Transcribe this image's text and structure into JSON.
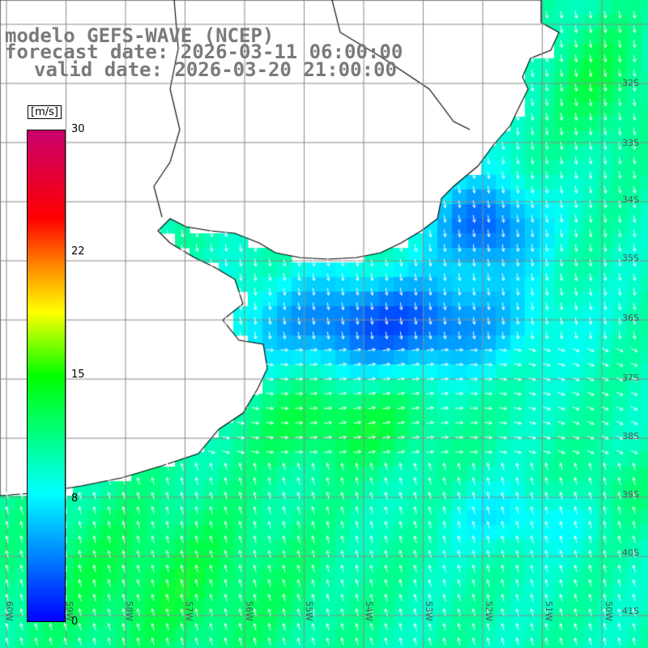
{
  "title": {
    "model": "modelo GEFS-WAVE (NCEP)",
    "forecast": "forecast date: 2026-03-11 06:00:00",
    "valid": "valid date: 2026-03-20 21:00:00"
  },
  "colorbar": {
    "unit": "[m/s]",
    "ticks": [
      "30",
      "22",
      "15",
      "8",
      "0"
    ],
    "tick_values": [
      30,
      22,
      15,
      8,
      0
    ],
    "range": [
      0,
      30
    ]
  },
  "lon_labels": [
    "60W",
    "59W",
    "58W",
    "57W",
    "56W",
    "55W",
    "54W",
    "53W",
    "52W",
    "51W",
    "50W"
  ],
  "lat_labels": [
    "32S",
    "33S",
    "34S",
    "35S",
    "36S",
    "37S",
    "38S",
    "39S",
    "40S",
    "41S"
  ],
  "colors": {
    "land": "#ffffff",
    "coast": "#000000",
    "grid": "#808080",
    "arrows": "#ffffff"
  }
}
